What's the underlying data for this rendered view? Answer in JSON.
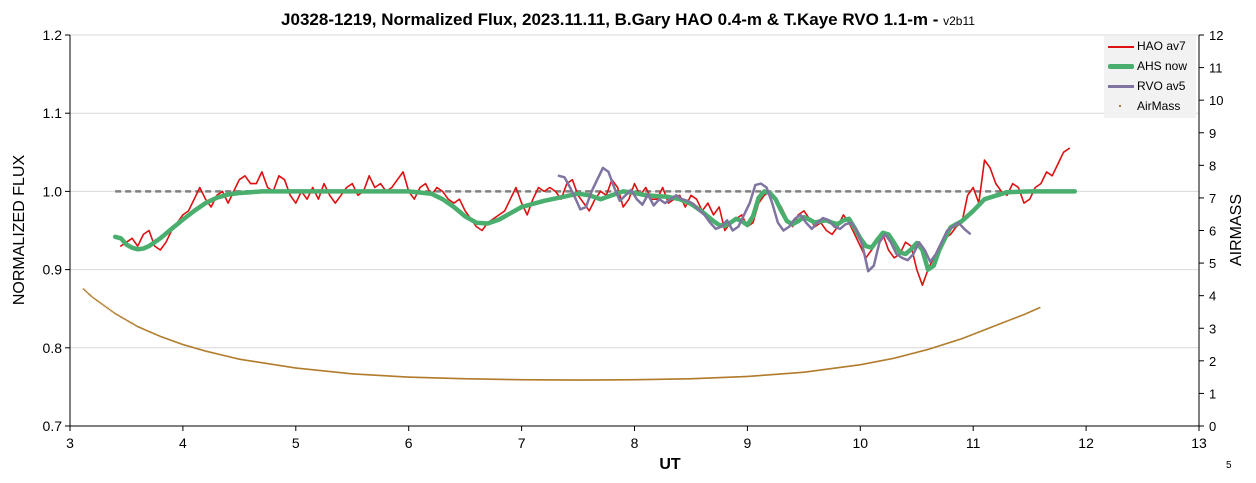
{
  "title": "J0328-1219, Normalized Flux, 2023.11.11, B.Gary HAO 0.4-m & T.Kaye RVO 1.1-m",
  "title_suffix": " - ",
  "version": "v2b11",
  "corner_label": "5",
  "colors": {
    "hao": "#dd1111",
    "ahs": "#4aaf6e",
    "rvo": "#8074a0",
    "airmass": "#b07a2a",
    "reference": "#808080",
    "grid": "#d9d9d9"
  },
  "chart_data": {
    "type": "line",
    "title": "J0328-1219, Normalized Flux, 2023.11.11, B.Gary HAO 0.4-m & T.Kaye RVO 1.1-m - v2b11",
    "xlabel": "UT",
    "ylabel": "NORMALIZED FLUX",
    "y2label": "AIRMASS",
    "xlim": [
      3,
      13
    ],
    "ylim": [
      0.7,
      1.2
    ],
    "y2lim": [
      0,
      12
    ],
    "xticks": [
      "3",
      "4",
      "5",
      "6",
      "7",
      "8",
      "9",
      "10",
      "11",
      "12",
      "13"
    ],
    "yticks": [
      "0.7",
      "0.8",
      "0.9",
      "1.0",
      "1.1",
      "1.2"
    ],
    "y2ticks": [
      "0",
      "1",
      "2",
      "3",
      "4",
      "5",
      "6",
      "7",
      "8",
      "9",
      "10",
      "11",
      "12"
    ],
    "grid": "horizontal",
    "legend_position": "top-right",
    "reference_line": {
      "y": 1.0,
      "x": [
        3.4,
        11.9
      ],
      "style": "dashed"
    },
    "series": [
      {
        "name": "HAO av7",
        "axis": "left",
        "x": [
          3.45,
          3.5,
          3.55,
          3.6,
          3.65,
          3.7,
          3.75,
          3.8,
          3.85,
          3.9,
          3.95,
          4.0,
          4.05,
          4.1,
          4.15,
          4.2,
          4.25,
          4.3,
          4.35,
          4.4,
          4.45,
          4.5,
          4.55,
          4.6,
          4.65,
          4.7,
          4.75,
          4.8,
          4.85,
          4.9,
          4.95,
          5.0,
          5.05,
          5.1,
          5.15,
          5.2,
          5.25,
          5.3,
          5.35,
          5.4,
          5.45,
          5.5,
          5.55,
          5.6,
          5.65,
          5.7,
          5.75,
          5.8,
          5.85,
          5.9,
          5.95,
          6.0,
          6.05,
          6.1,
          6.15,
          6.2,
          6.25,
          6.3,
          6.35,
          6.4,
          6.45,
          6.5,
          6.55,
          6.6,
          6.65,
          6.7,
          6.75,
          6.8,
          6.85,
          6.9,
          6.95,
          7.0,
          7.05,
          7.1,
          7.15,
          7.2,
          7.25,
          7.3,
          7.35,
          7.4,
          7.45,
          7.5,
          7.55,
          7.6,
          7.65,
          7.7,
          7.75,
          7.8,
          7.85,
          7.9,
          7.95,
          8.0,
          8.05,
          8.1,
          8.15,
          8.2,
          8.25,
          8.3,
          8.35,
          8.4,
          8.45,
          8.5,
          8.55,
          8.6,
          8.65,
          8.7,
          8.75,
          8.8,
          8.85,
          8.9,
          8.95,
          9.0,
          9.05,
          9.1,
          9.15,
          9.2,
          9.25,
          9.3,
          9.35,
          9.4,
          9.45,
          9.5,
          9.55,
          9.6,
          9.65,
          9.7,
          9.75,
          9.8,
          9.85,
          9.9,
          9.95,
          10.0,
          10.05,
          10.1,
          10.15,
          10.2,
          10.25,
          10.3,
          10.35,
          10.4,
          10.45,
          10.5,
          10.55,
          10.6,
          10.65,
          10.7,
          10.75,
          10.8,
          10.85,
          10.9,
          10.95,
          11.0,
          11.05,
          11.1,
          11.15,
          11.2,
          11.25,
          11.3,
          11.35,
          11.4,
          11.45,
          11.5,
          11.55,
          11.6,
          11.65,
          11.7,
          11.75,
          11.8,
          11.85
        ],
        "y": [
          0.93,
          0.935,
          0.94,
          0.93,
          0.945,
          0.95,
          0.93,
          0.925,
          0.935,
          0.95,
          0.96,
          0.97,
          0.975,
          0.99,
          1.005,
          0.99,
          0.98,
          0.995,
          1.0,
          0.985,
          1.0,
          1.015,
          1.02,
          1.01,
          1.01,
          1.025,
          1.005,
          1.0,
          1.02,
          1.015,
          0.995,
          0.985,
          1.0,
          0.99,
          1.005,
          0.99,
          1.01,
          0.995,
          0.985,
          0.995,
          1.005,
          1.01,
          0.995,
          1.0,
          1.02,
          1.005,
          1.01,
          1.0,
          1.005,
          1.015,
          1.025,
          1.0,
          0.99,
          1.005,
          1.01,
          0.995,
          1.005,
          1.0,
          0.99,
          0.985,
          0.99,
          0.975,
          0.965,
          0.955,
          0.95,
          0.96,
          0.965,
          0.97,
          0.975,
          0.99,
          1.005,
          0.985,
          0.97,
          0.99,
          1.005,
          1.0,
          1.005,
          1.0,
          0.99,
          1.01,
          1.015,
          0.995,
          0.985,
          0.975,
          0.99,
          1.0,
          0.995,
          1.015,
          1.005,
          0.98,
          0.99,
          1.01,
          0.995,
          1.005,
          0.99,
          0.99,
          1.005,
          0.985,
          0.99,
          0.995,
          0.98,
          0.995,
          0.99,
          0.975,
          0.985,
          0.97,
          0.98,
          0.95,
          0.96,
          0.965,
          0.97,
          0.955,
          0.96,
          0.985,
          0.995,
          1.0,
          0.99,
          0.98,
          0.965,
          0.955,
          0.97,
          0.975,
          0.965,
          0.955,
          0.96,
          0.95,
          0.945,
          0.955,
          0.97,
          0.96,
          0.945,
          0.93,
          0.915,
          0.925,
          0.935,
          0.945,
          0.925,
          0.915,
          0.92,
          0.935,
          0.93,
          0.9,
          0.88,
          0.9,
          0.915,
          0.93,
          0.94,
          0.945,
          0.955,
          0.96,
          0.995,
          1.005,
          0.985,
          1.04,
          1.03,
          1.01,
          1.0,
          0.995,
          1.01,
          1.005,
          0.985,
          0.99,
          1.005,
          1.01,
          1.025,
          1.02,
          1.035,
          1.05,
          1.055
        ]
      },
      {
        "name": "AHS now",
        "axis": "left",
        "x": [
          3.4,
          3.45,
          3.5,
          3.55,
          3.6,
          3.65,
          3.7,
          3.8,
          3.9,
          4.0,
          4.1,
          4.2,
          4.3,
          4.4,
          4.5,
          4.6,
          4.7,
          4.8,
          5.0,
          5.5,
          6.0,
          6.2,
          6.3,
          6.4,
          6.5,
          6.6,
          6.7,
          6.8,
          6.9,
          7.0,
          7.2,
          7.4,
          7.5,
          7.6,
          7.7,
          7.8,
          7.9,
          8.0,
          8.1,
          8.2,
          8.3,
          8.4,
          8.5,
          8.6,
          8.7,
          8.75,
          8.8,
          8.85,
          8.9,
          8.95,
          9.0,
          9.05,
          9.1,
          9.15,
          9.2,
          9.25,
          9.3,
          9.35,
          9.4,
          9.45,
          9.5,
          9.55,
          9.6,
          9.65,
          9.7,
          9.75,
          9.8,
          9.85,
          9.9,
          9.95,
          10.0,
          10.05,
          10.1,
          10.15,
          10.2,
          10.25,
          10.3,
          10.35,
          10.4,
          10.45,
          10.5,
          10.55,
          10.6,
          10.65,
          10.7,
          10.75,
          10.8,
          10.9,
          11.0,
          11.1,
          11.3,
          11.5,
          11.7,
          11.9
        ],
        "y": [
          0.942,
          0.94,
          0.932,
          0.928,
          0.926,
          0.927,
          0.93,
          0.94,
          0.952,
          0.964,
          0.975,
          0.985,
          0.992,
          0.996,
          0.998,
          0.999,
          1.0,
          1.0,
          1.0,
          1.0,
          1.0,
          0.997,
          0.99,
          0.98,
          0.968,
          0.96,
          0.959,
          0.964,
          0.972,
          0.98,
          0.988,
          0.994,
          0.997,
          0.995,
          0.99,
          0.995,
          1.0,
          0.998,
          0.995,
          0.994,
          0.993,
          0.99,
          0.984,
          0.974,
          0.962,
          0.957,
          0.956,
          0.96,
          0.965,
          0.962,
          0.957,
          0.968,
          0.992,
          1.0,
          0.998,
          0.99,
          0.975,
          0.962,
          0.958,
          0.962,
          0.967,
          0.964,
          0.96,
          0.962,
          0.963,
          0.96,
          0.958,
          0.963,
          0.965,
          0.953,
          0.94,
          0.93,
          0.928,
          0.938,
          0.947,
          0.945,
          0.934,
          0.922,
          0.92,
          0.926,
          0.934,
          0.925,
          0.9,
          0.905,
          0.925,
          0.94,
          0.954,
          0.962,
          0.975,
          0.99,
          0.999,
          1.0,
          1.0,
          1.0
        ]
      },
      {
        "name": "RVO av5",
        "axis": "left",
        "x": [
          7.33,
          7.38,
          7.43,
          7.48,
          7.52,
          7.57,
          7.62,
          7.67,
          7.72,
          7.77,
          7.82,
          7.87,
          7.92,
          7.97,
          8.02,
          8.07,
          8.12,
          8.17,
          8.22,
          8.27,
          8.32,
          8.37,
          8.42,
          8.47,
          8.52,
          8.57,
          8.62,
          8.67,
          8.72,
          8.77,
          8.82,
          8.87,
          8.92,
          8.97,
          9.02,
          9.07,
          9.12,
          9.17,
          9.22,
          9.27,
          9.32,
          9.37,
          9.42,
          9.47,
          9.52,
          9.57,
          9.62,
          9.67,
          9.72,
          9.77,
          9.82,
          9.87,
          9.92,
          9.97,
          10.02,
          10.07,
          10.12,
          10.17,
          10.22,
          10.27,
          10.32,
          10.37,
          10.42,
          10.47,
          10.52,
          10.57,
          10.62,
          10.67,
          10.72,
          10.77,
          10.82,
          10.87,
          10.92,
          10.97
        ],
        "y": [
          1.02,
          1.018,
          1.005,
          0.99,
          0.977,
          0.98,
          1.0,
          1.015,
          1.03,
          1.025,
          1.005,
          0.988,
          0.995,
          1.002,
          0.99,
          0.983,
          0.996,
          0.982,
          0.99,
          0.985,
          0.99,
          0.995,
          0.99,
          0.988,
          0.984,
          0.976,
          0.97,
          0.96,
          0.952,
          0.955,
          0.963,
          0.95,
          0.955,
          0.97,
          0.985,
          1.008,
          1.01,
          1.005,
          0.985,
          0.96,
          0.95,
          0.955,
          0.965,
          0.97,
          0.96,
          0.952,
          0.96,
          0.966,
          0.963,
          0.955,
          0.952,
          0.958,
          0.96,
          0.95,
          0.93,
          0.898,
          0.905,
          0.935,
          0.945,
          0.935,
          0.92,
          0.915,
          0.912,
          0.92,
          0.935,
          0.925,
          0.91,
          0.92,
          0.935,
          0.95,
          0.955,
          0.96,
          0.952,
          0.946
        ]
      },
      {
        "name": "AirMass",
        "axis": "right",
        "style": "dots",
        "x": [
          3.12,
          3.2,
          3.3,
          3.4,
          3.5,
          3.6,
          3.8,
          4.0,
          4.2,
          4.5,
          5.0,
          5.5,
          6.0,
          6.5,
          7.0,
          7.5,
          8.0,
          8.5,
          9.0,
          9.5,
          10.0,
          10.3,
          10.6,
          10.9,
          11.1,
          11.3,
          11.45,
          11.6
        ],
        "y": [
          4.2,
          3.95,
          3.7,
          3.45,
          3.25,
          3.05,
          2.75,
          2.5,
          2.3,
          2.05,
          1.78,
          1.6,
          1.5,
          1.45,
          1.42,
          1.41,
          1.42,
          1.45,
          1.52,
          1.65,
          1.88,
          2.08,
          2.35,
          2.68,
          2.95,
          3.22,
          3.42,
          3.65
        ]
      }
    ]
  }
}
